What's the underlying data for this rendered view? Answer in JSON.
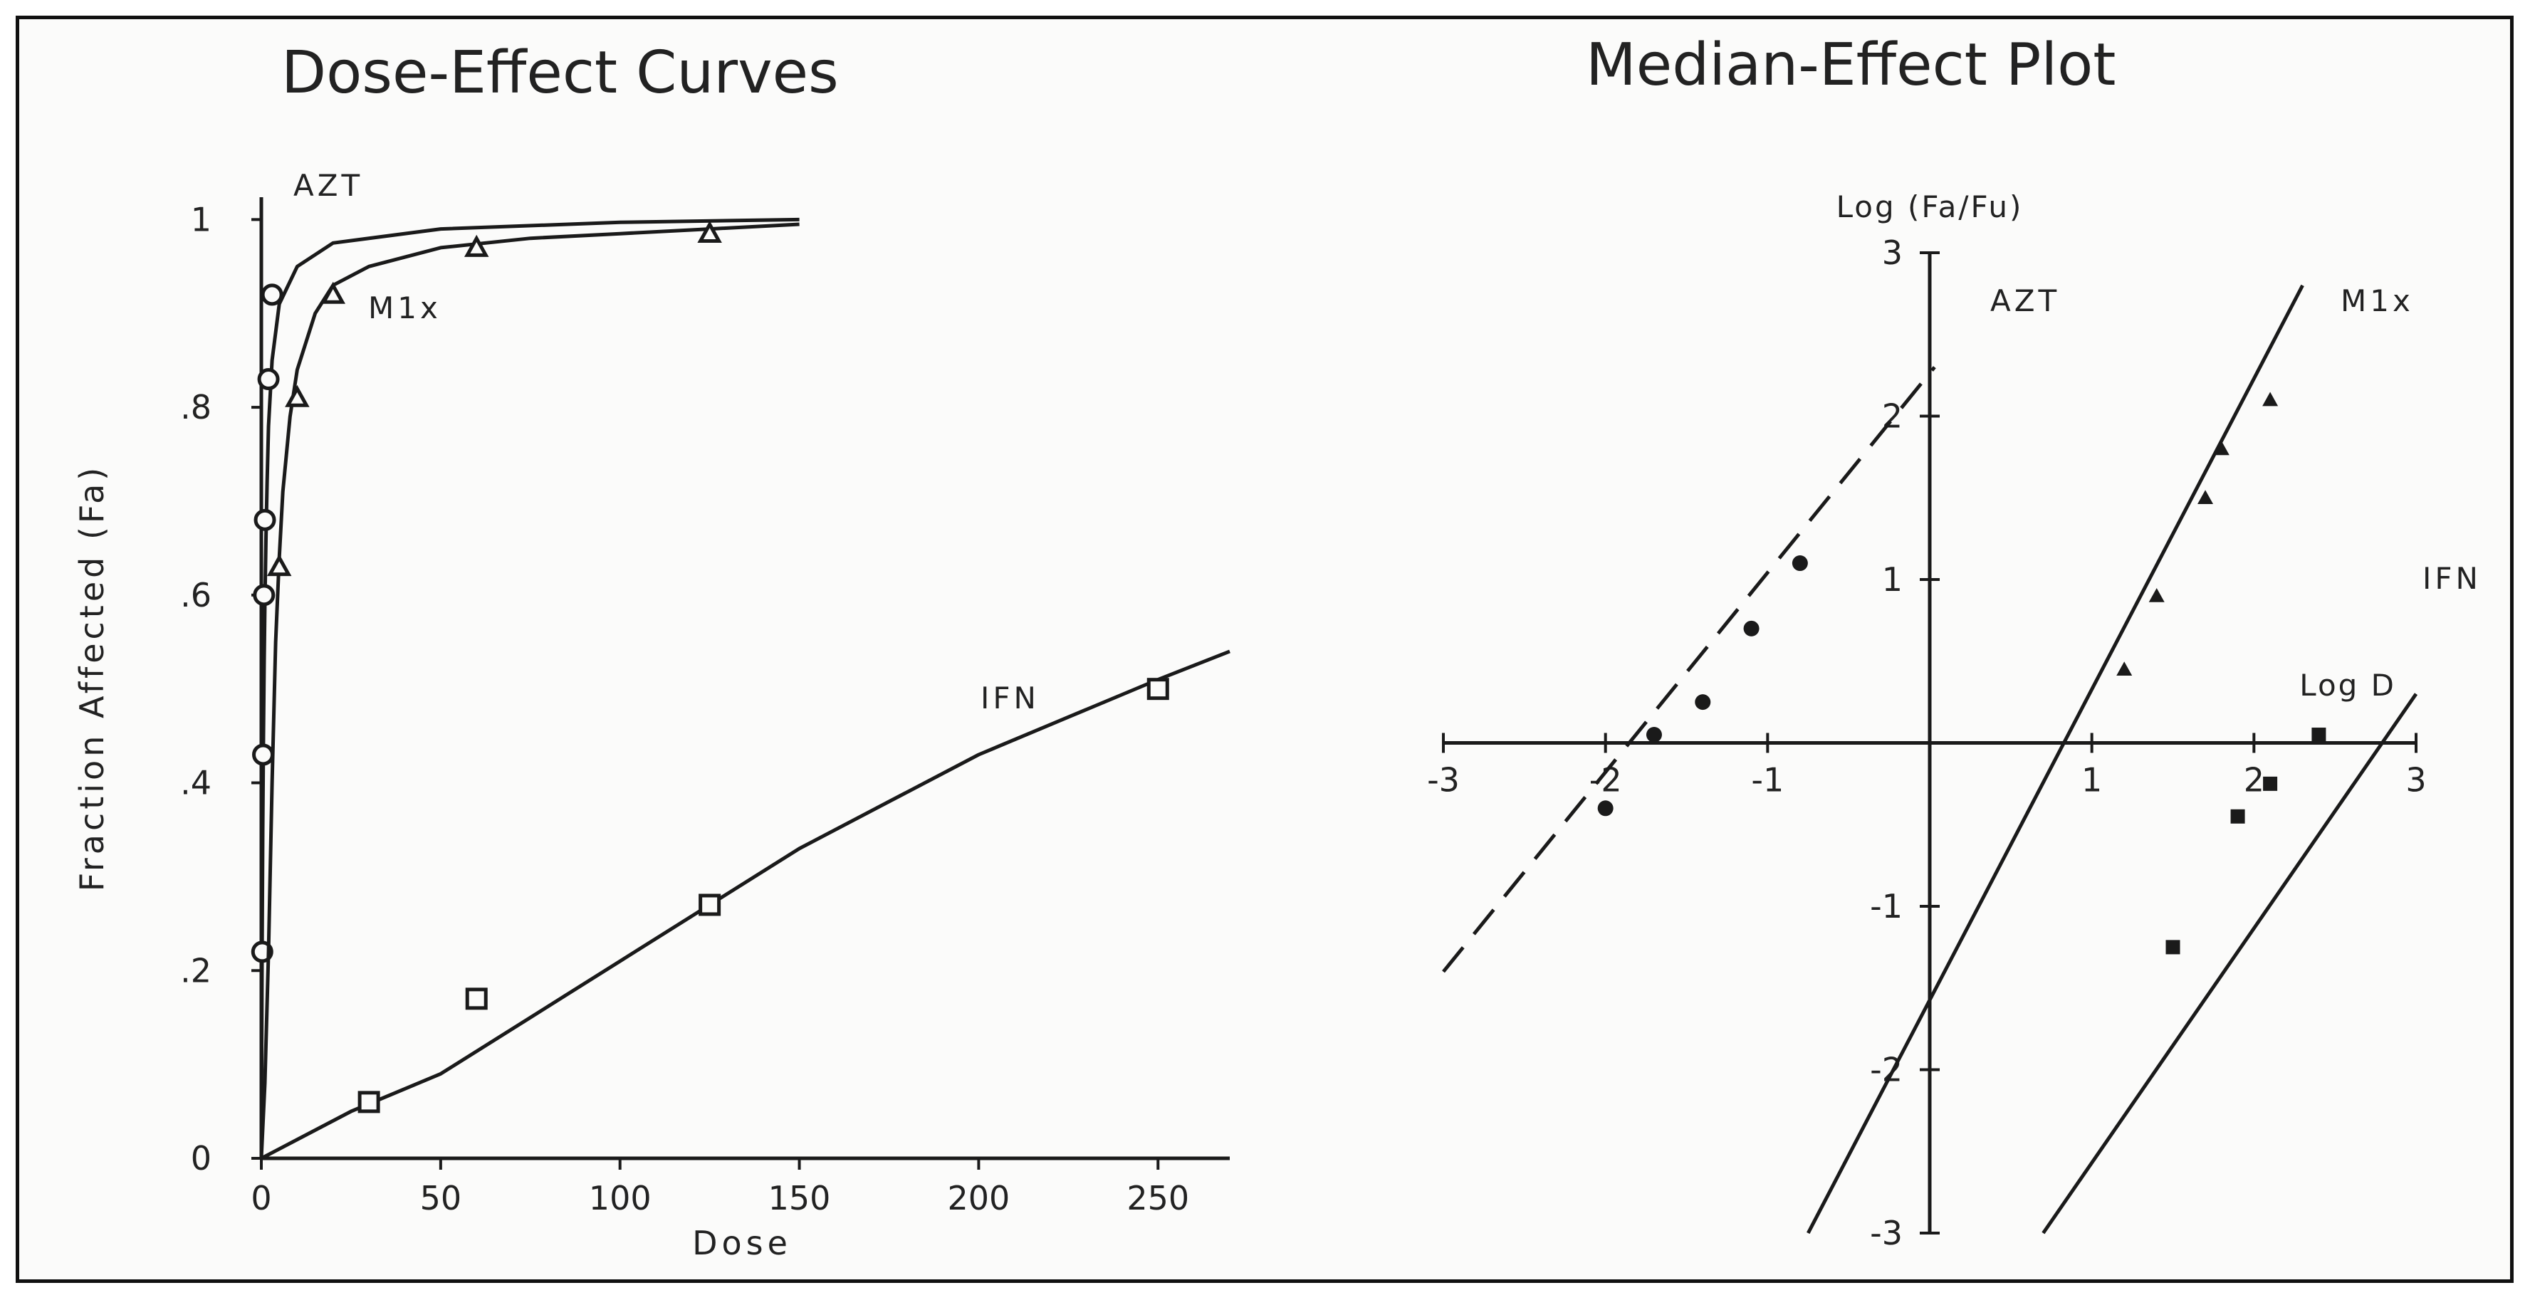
{
  "chart_data": [
    {
      "id": "left",
      "type": "line",
      "title": "Dose-Effect Curves",
      "xlabel": "Dose",
      "ylabel": "Fraction Affected (Fa)",
      "xlim": [
        0,
        270
      ],
      "ylim": [
        0,
        1.02
      ],
      "xticks": [
        0,
        50,
        100,
        150,
        200,
        250
      ],
      "xtick_labels": [
        "0",
        "50",
        "100",
        "150",
        "200",
        "250"
      ],
      "yticks": [
        0,
        0.2,
        0.4,
        0.6,
        0.8,
        1.0
      ],
      "ytick_labels": [
        "0",
        ".2",
        ".4",
        ".6",
        ".8",
        "1"
      ],
      "grid": false,
      "series": [
        {
          "name": "AZT",
          "marker": "circle",
          "curve": {
            "x": [
              0,
              0.2,
              0.4,
              0.6,
              0.8,
              1,
              1.3,
              1.6,
              2,
              3,
              5,
              10,
              20,
              50,
              100,
              150
            ],
            "y": [
              0,
              0.21,
              0.35,
              0.45,
              0.53,
              0.59,
              0.66,
              0.72,
              0.78,
              0.85,
              0.91,
              0.95,
              0.975,
              0.99,
              0.997,
              1.0
            ]
          },
          "points": {
            "x": [
              0.25,
              0.5,
              0.75,
              1.0,
              2.0,
              3.0
            ],
            "y": [
              0.22,
              0.43,
              0.6,
              0.68,
              0.83,
              0.92
            ]
          }
        },
        {
          "name": "M1x",
          "marker": "triangle",
          "curve": {
            "x": [
              0,
              1,
              2,
              3,
              4,
              5,
              6,
              8,
              10,
              15,
              20,
              30,
              50,
              75,
              100,
              125,
              150
            ],
            "y": [
              0,
              0.08,
              0.22,
              0.4,
              0.55,
              0.64,
              0.71,
              0.79,
              0.84,
              0.9,
              0.93,
              0.95,
              0.97,
              0.98,
              0.985,
              0.99,
              0.995
            ]
          },
          "points": {
            "x": [
              5,
              10,
              20,
              60,
              125
            ],
            "y": [
              0.63,
              0.81,
              0.92,
              0.97,
              0.985
            ]
          }
        },
        {
          "name": "IFN",
          "marker": "square",
          "curve": {
            "x": [
              0,
              10,
              25,
              50,
              75,
              100,
              125,
              150,
              175,
              200,
              225,
              250,
              270
            ],
            "y": [
              0,
              0.02,
              0.05,
              0.09,
              0.15,
              0.21,
              0.27,
              0.33,
              0.38,
              0.43,
              0.47,
              0.51,
              0.54
            ]
          },
          "points": {
            "x": [
              30,
              60,
              125,
              250
            ],
            "y": [
              0.06,
              0.17,
              0.27,
              0.5
            ]
          }
        }
      ]
    },
    {
      "id": "right",
      "type": "line",
      "title": "Median-Effect Plot",
      "xlabel": "Log D",
      "ylabel": "Log (Fa/Fu)",
      "xlim": [
        -3,
        3
      ],
      "ylim": [
        -3,
        3
      ],
      "xticks": [
        -3,
        -2,
        -1,
        1,
        2,
        3
      ],
      "xtick_labels": [
        "-3",
        "-2",
        "-1",
        "1",
        "2",
        "3"
      ],
      "yticks": [
        -3,
        -2,
        -1,
        1,
        2,
        3
      ],
      "ytick_labels": [
        "-3",
        "-2",
        "-1",
        "1",
        "2",
        "3"
      ],
      "grid": false,
      "series": [
        {
          "name": "AZT",
          "marker": "circle",
          "style": "dashed",
          "line": {
            "x": [
              -3,
              0.03
            ],
            "y": [
              -1.4,
              2.3
            ]
          },
          "points": {
            "x": [
              -2.0,
              -1.7,
              -1.4,
              -1.1,
              -0.8
            ],
            "y": [
              -0.4,
              0.05,
              0.25,
              0.7,
              1.1
            ]
          }
        },
        {
          "name": "M1x",
          "marker": "triangle",
          "style": "solid",
          "line": {
            "x": [
              -0.75,
              2.3
            ],
            "y": [
              -3.0,
              2.8
            ]
          },
          "points": {
            "x": [
              1.2,
              1.4,
              1.7,
              1.8,
              2.1
            ],
            "y": [
              0.45,
              0.9,
              1.5,
              1.8,
              2.1
            ]
          }
        },
        {
          "name": "IFN",
          "marker": "square",
          "style": "solid",
          "line": {
            "x": [
              0.7,
              3.0
            ],
            "y": [
              -3.0,
              0.3
            ]
          },
          "points": {
            "x": [
              1.5,
              1.9,
              2.1,
              2.4
            ],
            "y": [
              -1.25,
              -0.45,
              -0.25,
              0.05
            ]
          }
        }
      ]
    }
  ]
}
